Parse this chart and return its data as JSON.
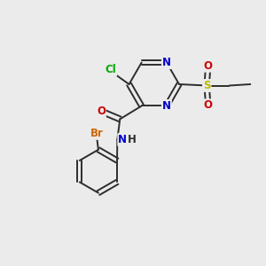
{
  "bg_color": "#ebebeb",
  "bond_color": "#2d2d2d",
  "atom_colors": {
    "Cl": "#00aa00",
    "Br": "#cc6600",
    "N": "#0000cc",
    "O": "#cc0000",
    "S": "#bbbb00",
    "C": "#2d2d2d",
    "H": "#2d2d2d"
  },
  "font_size": 8.5,
  "line_width": 1.4
}
